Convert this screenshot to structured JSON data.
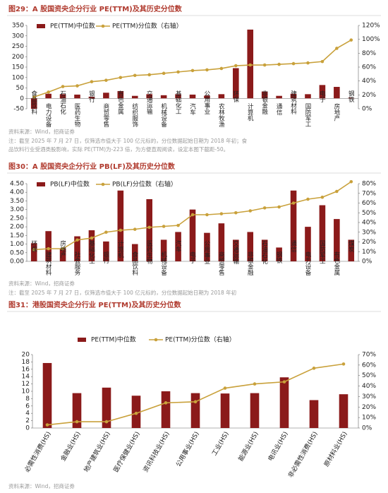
{
  "chart_data": [
    {
      "type": "combo",
      "title": "图29：A 股国资央企分行业 PE(TTM)及其历史分位数",
      "categories": [
        "食品饮料",
        "电力设备",
        "石油石化",
        "医药生物",
        "银行",
        "商贸零售",
        "有色金属",
        "纺织服饰",
        "交通运输",
        "机械设备",
        "基础化工",
        "汽车",
        "公用事业",
        "农林牧渔",
        "环保",
        "计算机",
        "非银金融",
        "通信",
        "建筑材料",
        "国防军工",
        "电子",
        "房地产",
        "钢铁"
      ],
      "series": [
        {
          "name": "PE(TTM)中位数",
          "color": "#8b1a1a",
          "kind": "bar",
          "values": [
            -50,
            22,
            20,
            18,
            8,
            27,
            35,
            12,
            20,
            15,
            20,
            18,
            13,
            20,
            145,
            330,
            33,
            12,
            22,
            20,
            64,
            55,
            3
          ]
        },
        {
          "name": "PE(TTM)分位数（右轴）",
          "color": "#c9a13b",
          "kind": "line",
          "axis": "y2",
          "values": [
            17,
            24,
            32,
            33,
            39,
            41,
            45,
            48,
            49,
            51,
            53,
            55,
            56,
            58,
            62,
            63,
            63,
            64,
            65,
            66,
            68,
            87,
            99
          ]
        }
      ],
      "ylim": [
        -50,
        350
      ],
      "yticks": [
        -50,
        0,
        50,
        100,
        150,
        200,
        250,
        300,
        350
      ],
      "y2lim": [
        0,
        120
      ],
      "y2ticks": [
        {
          "value": 0,
          "label": "0%"
        },
        {
          "value": 20,
          "label": "20%"
        },
        {
          "value": 40,
          "label": "40%"
        },
        {
          "value": 60,
          "label": "60%"
        },
        {
          "value": 80,
          "label": "80%"
        },
        {
          "value": 100,
          "label": "100%"
        },
        {
          "value": 120,
          "label": "120%"
        }
      ],
      "source": "资料来源：Wind，招商证券",
      "note": [
        "注：截至 2025 年 7 月 27 日，仅筛选市值大于 100 亿元标的，分位数据起始日期为 2018 年初；食",
        "品饮料行业受酒类股影响，实际 PE(TTM)为-223 倍，为方便直观阅读，设定本图下截距-50。"
      ]
    },
    {
      "type": "combo",
      "title": "图30：A 股国资央企分行业 PB(LF)及其历史分位数",
      "categories": [
        "环保",
        "建筑材料",
        "房地产",
        "社会服务",
        "基础化工",
        "银行",
        "计算机",
        "食品饮料",
        "医药生物",
        "机械设备",
        "汽车",
        "电子",
        "公用事业",
        "商贸零售",
        "交通运输",
        "非银金融",
        "石油石化",
        "钢铁",
        "通信",
        "电力设备",
        "国防军工",
        "有色金属",
        "煤炭"
      ],
      "series": [
        {
          "name": "PB(LF)中位数",
          "color": "#8b1a1a",
          "kind": "bar",
          "values": [
            1.05,
            1.75,
            0.75,
            1.45,
            1.8,
            1.15,
            4.1,
            1.0,
            3.6,
            1.25,
            1.7,
            3.0,
            1.65,
            2.2,
            1.25,
            1.7,
            1.25,
            0.8,
            4.1,
            2.0,
            3.25,
            2.45,
            1.25
          ]
        },
        {
          "name": "PB(LF)分位数（右轴）",
          "color": "#c9a13b",
          "kind": "line",
          "axis": "y2",
          "values": [
            12,
            13,
            13,
            22,
            24,
            30,
            32,
            33,
            35,
            36,
            37,
            48,
            48,
            49,
            50,
            52,
            55,
            56,
            60,
            64,
            66,
            72,
            82
          ]
        }
      ],
      "ylim": [
        0,
        4.5
      ],
      "yticks": [
        {
          "value": 0,
          "label": "0.00"
        },
        {
          "value": 0.5,
          "label": "0.50"
        },
        {
          "value": 1,
          "label": "1.00"
        },
        {
          "value": 1.5,
          "label": "1.50"
        },
        {
          "value": 2,
          "label": "2.00"
        },
        {
          "value": 2.5,
          "label": "2.50"
        },
        {
          "value": 3,
          "label": "3.00"
        },
        {
          "value": 3.5,
          "label": "3.50"
        },
        {
          "value": 4,
          "label": "4.00"
        },
        {
          "value": 4.5,
          "label": "4.50"
        }
      ],
      "y2lim": [
        0,
        80
      ],
      "y2ticks": [
        {
          "value": 0,
          "label": "0%"
        },
        {
          "value": 10,
          "label": "10%"
        },
        {
          "value": 20,
          "label": "20%"
        },
        {
          "value": 30,
          "label": "30%"
        },
        {
          "value": 40,
          "label": "40%"
        },
        {
          "value": 50,
          "label": "50%"
        },
        {
          "value": 60,
          "label": "60%"
        },
        {
          "value": 70,
          "label": "70%"
        },
        {
          "value": 80,
          "label": "80%"
        }
      ],
      "source": "资料来源：Wind，招商证券",
      "note": [
        "注：截至 2025 年 7 月 27 日，仅筛选市值大于 100 亿元标的，分位数据起始日期为 2018 年初"
      ]
    },
    {
      "type": "combo",
      "title": "图31：港股国资央企分行业 PE(TTM)及其历史分位数",
      "categories": [
        "必需性消费(HS)",
        "金融业(HS)",
        "地产建筑业(HS)",
        "医疗保健业(HS)",
        "资讯科技业(HS)",
        "公用事业(HS)",
        "工业(HS)",
        "能源业(HS)",
        "电讯业(HS)",
        "非必需性消费(HS)",
        "原材料业(HS)"
      ],
      "series": [
        {
          "name": "PE(TTM)中位数",
          "color": "#8b1a1a",
          "kind": "bar",
          "values": [
            17.7,
            9.5,
            11,
            8.8,
            10,
            9.5,
            9.4,
            9.5,
            13.8,
            7.6,
            9.2
          ]
        },
        {
          "name": "PE(TTM)分位数（右轴）",
          "color": "#c9a13b",
          "kind": "line",
          "axis": "y2",
          "values": [
            3,
            6,
            6,
            14,
            24,
            25,
            38,
            42,
            44,
            57,
            61
          ]
        }
      ],
      "ylim": [
        0,
        20
      ],
      "yticks": [
        0,
        2,
        4,
        6,
        8,
        10,
        12,
        14,
        16,
        18,
        20
      ],
      "y2lim": [
        0,
        70
      ],
      "y2ticks": [
        {
          "value": 0,
          "label": "0%"
        },
        {
          "value": 10,
          "label": "10%"
        },
        {
          "value": 20,
          "label": "20%"
        },
        {
          "value": 30,
          "label": "30%"
        },
        {
          "value": 40,
          "label": "40%"
        },
        {
          "value": 50,
          "label": "50%"
        },
        {
          "value": 60,
          "label": "60%"
        },
        {
          "value": 70,
          "label": "70%"
        }
      ],
      "source": "资料来源：Wind，招商证券"
    }
  ]
}
